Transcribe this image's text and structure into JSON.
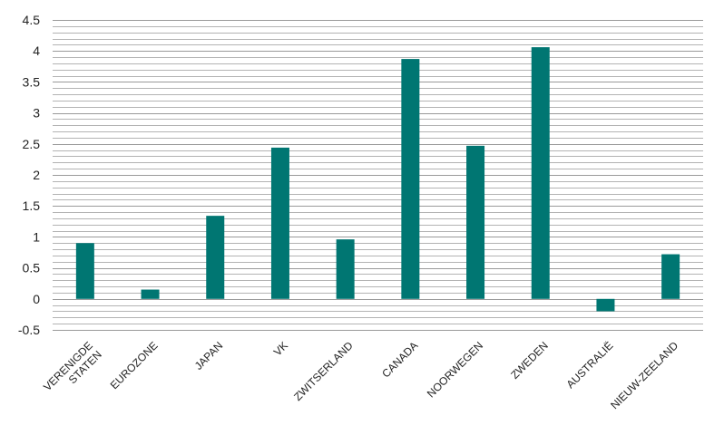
{
  "chart_data": {
    "type": "bar",
    "categories": [
      "VERENIGDE STATEN",
      "EUROZONE",
      "JAPAN",
      "VK",
      "ZWITSERLAND",
      "CANADA",
      "NOORWEGEN",
      "ZWEDEN",
      "AUSTRALIË",
      "NIEUW-ZEELAND"
    ],
    "category_lines": [
      [
        "VERENIGDE",
        "STATEN"
      ],
      [
        "EUROZONE"
      ],
      [
        "JAPAN"
      ],
      [
        "VK"
      ],
      [
        "ZWITSERLAND"
      ],
      [
        "CANADA"
      ],
      [
        "NOORWEGEN"
      ],
      [
        "ZWEDEN"
      ],
      [
        "AUSTRALIË"
      ],
      [
        "NIEUW-ZEELAND"
      ]
    ],
    "values": [
      0.9,
      0.15,
      1.34,
      2.44,
      0.96,
      3.87,
      2.47,
      4.06,
      -0.2,
      0.72
    ],
    "ylim": [
      -0.5,
      4.5
    ],
    "ytick_labels": [
      "4.5",
      "4",
      "3.5",
      "3",
      "2.5",
      "2",
      "1.5",
      "1",
      "0.5",
      "0",
      "-0.5"
    ],
    "minor_grid_step": 0.1,
    "grid": true,
    "bar_color": "#007672",
    "grid_color": "#9a9a9a",
    "title": "",
    "xlabel": "",
    "ylabel": ""
  }
}
